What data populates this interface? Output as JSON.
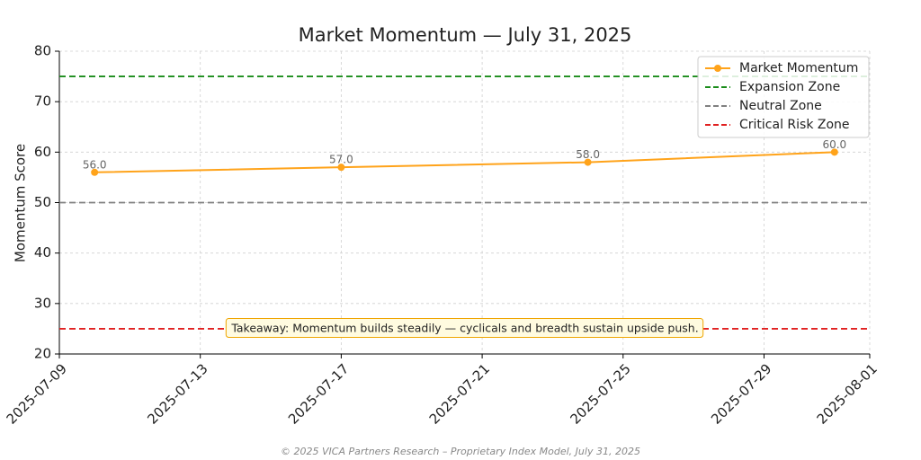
{
  "chart_data": {
    "type": "line",
    "title": "Market Momentum — July 31, 2025",
    "y_label": "Momentum Score",
    "x": [
      "2025-07-10",
      "2025-07-17",
      "2025-07-24",
      "2025-07-31"
    ],
    "series": [
      {
        "name": "Market Momentum",
        "color": "#ffa31a",
        "values": [
          56,
          57,
          58,
          60
        ],
        "value_labels": [
          "56.0",
          "57.0",
          "58.0",
          "60.0"
        ]
      }
    ],
    "reference_lines": [
      {
        "name": "Expansion Zone",
        "value": 75,
        "color": "#1a8c1a"
      },
      {
        "name": "Neutral Zone",
        "value": 50,
        "color": "#808080"
      },
      {
        "name": "Critical Risk Zone",
        "value": 25,
        "color": "#e02020"
      }
    ],
    "xlim": [
      "2025-07-09",
      "2025-08-01"
    ],
    "xticks": [
      "2025-07-09",
      "2025-07-13",
      "2025-07-17",
      "2025-07-21",
      "2025-07-25",
      "2025-07-29",
      "2025-08-01"
    ],
    "ylim": [
      20,
      80
    ],
    "yticks": [
      20,
      30,
      40,
      50,
      60,
      70,
      80
    ],
    "grid": true,
    "legend": "upper right",
    "annotation": "Takeaway: Momentum builds steadily — cyclicals and breadth sustain upside push.",
    "footer": "© 2025 VICA Partners Research – Proprietary Index Model, July 31, 2025"
  }
}
